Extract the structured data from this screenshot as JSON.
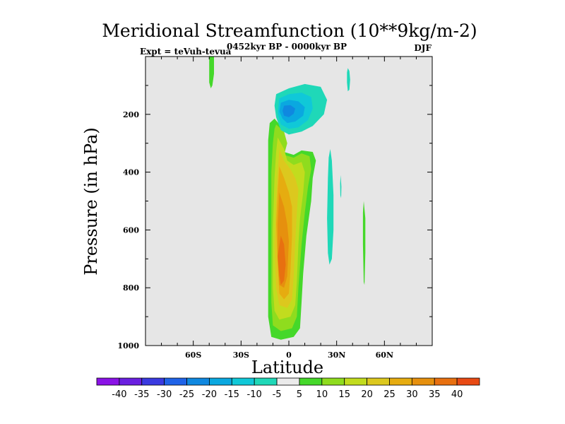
{
  "chart_data": {
    "type": "contour",
    "title": "Meridional Streamfunction (10**9kg/m-2)",
    "left_string": "Expt = teVuh-tevua",
    "center_string": "0452kyr BP - 0000kyr BP",
    "right_string": "DJF",
    "xlabel": "Latitude",
    "ylabel": "Pressure (in hPa)",
    "xlim": [
      -90,
      90
    ],
    "ylim": [
      1000,
      0
    ],
    "grid": false,
    "x_ticks": [
      {
        "value": -60,
        "label": "60S"
      },
      {
        "value": -30,
        "label": "30S"
      },
      {
        "value": 0,
        "label": "0"
      },
      {
        "value": 30,
        "label": "30N"
      },
      {
        "value": 60,
        "label": "60N"
      }
    ],
    "y_ticks": [
      {
        "value": 200,
        "label": "200"
      },
      {
        "value": 400,
        "label": "400"
      },
      {
        "value": 600,
        "label": "600"
      },
      {
        "value": 800,
        "label": "800"
      },
      {
        "value": 1000,
        "label": "1000"
      }
    ],
    "background_color": "#e6e6e6",
    "colorbar": {
      "levels": [
        -40,
        -35,
        -30,
        -25,
        -20,
        -15,
        -10,
        -5,
        5,
        10,
        15,
        20,
        25,
        30,
        35,
        40
      ],
      "colors": [
        "#8a12e6",
        "#6a1fe0",
        "#3a3ae0",
        "#1f63e8",
        "#0f88e0",
        "#0aa8e0",
        "#10c8d8",
        "#1fd8b8",
        "#ebebeb",
        "#45d82a",
        "#8fdc1e",
        "#c2dc1e",
        "#dcc81e",
        "#e6ac10",
        "#e6900e",
        "#e87010",
        "#e84a14"
      ]
    },
    "regions": [
      {
        "name": "max-positive-cell-level-5",
        "fill_index": 9,
        "points": [
          [
            -9,
            215
          ],
          [
            -5,
            240
          ],
          [
            -2,
            310
          ],
          [
            -3,
            330
          ],
          [
            3,
            340
          ],
          [
            8,
            325
          ],
          [
            15,
            330
          ],
          [
            17,
            360
          ],
          [
            15,
            420
          ],
          [
            14,
            500
          ],
          [
            11,
            620
          ],
          [
            9,
            750
          ],
          [
            8,
            850
          ],
          [
            7,
            940
          ],
          [
            3,
            970
          ],
          [
            -5,
            980
          ],
          [
            -11,
            970
          ],
          [
            -13,
            900
          ],
          [
            -13,
            700
          ],
          [
            -13,
            450
          ],
          [
            -13,
            290
          ],
          [
            -12,
            230
          ]
        ]
      },
      {
        "name": "max-positive-cell-level-10",
        "fill_index": 10,
        "points": [
          [
            -8,
            235
          ],
          [
            -3,
            260
          ],
          [
            -1,
            300
          ],
          [
            -3,
            340
          ],
          [
            3,
            350
          ],
          [
            8,
            335
          ],
          [
            13,
            345
          ],
          [
            14,
            390
          ],
          [
            12,
            450
          ],
          [
            10,
            540
          ],
          [
            8,
            650
          ],
          [
            6,
            800
          ],
          [
            5,
            900
          ],
          [
            2,
            940
          ],
          [
            -5,
            950
          ],
          [
            -10,
            930
          ],
          [
            -11,
            850
          ],
          [
            -11,
            600
          ],
          [
            -11,
            400
          ],
          [
            -10,
            300
          ],
          [
            -9,
            250
          ]
        ]
      },
      {
        "name": "max-positive-cell-level-15",
        "fill_index": 11,
        "points": [
          [
            -7,
            280
          ],
          [
            -3,
            320
          ],
          [
            -1,
            360
          ],
          [
            3,
            375
          ],
          [
            8,
            365
          ],
          [
            10,
            400
          ],
          [
            9,
            470
          ],
          [
            7,
            560
          ],
          [
            6,
            650
          ],
          [
            5,
            780
          ],
          [
            4,
            860
          ],
          [
            1,
            900
          ],
          [
            -6,
            910
          ],
          [
            -9,
            880
          ],
          [
            -10,
            800
          ],
          [
            -10,
            600
          ],
          [
            -9,
            420
          ],
          [
            -8,
            330
          ]
        ]
      },
      {
        "name": "max-positive-cell-level-20",
        "fill_index": 12,
        "points": [
          [
            -6,
            320
          ],
          [
            -3,
            360
          ],
          [
            1,
            390
          ],
          [
            4,
            420
          ],
          [
            6,
            460
          ],
          [
            5,
            540
          ],
          [
            4,
            640
          ],
          [
            3,
            760
          ],
          [
            2,
            840
          ],
          [
            -1,
            870
          ],
          [
            -6,
            860
          ],
          [
            -8,
            800
          ],
          [
            -9,
            650
          ],
          [
            -8,
            500
          ],
          [
            -7,
            400
          ]
        ]
      },
      {
        "name": "max-positive-cell-level-25",
        "fill_index": 13,
        "points": [
          [
            -6,
            380
          ],
          [
            -3,
            420
          ],
          [
            0,
            470
          ],
          [
            2,
            520
          ],
          [
            2,
            620
          ],
          [
            1,
            740
          ],
          [
            0,
            820
          ],
          [
            -3,
            840
          ],
          [
            -6,
            820
          ],
          [
            -7,
            720
          ],
          [
            -8,
            580
          ],
          [
            -7,
            470
          ]
        ]
      },
      {
        "name": "max-positive-cell-level-30",
        "fill_index": 14,
        "points": [
          [
            -6,
            470
          ],
          [
            -3,
            520
          ],
          [
            -1,
            580
          ],
          [
            0,
            640
          ],
          [
            -1,
            760
          ],
          [
            -3,
            800
          ],
          [
            -6,
            790
          ],
          [
            -7,
            700
          ],
          [
            -7,
            580
          ]
        ]
      },
      {
        "name": "max-positive-cell-level-35",
        "fill_index": 15,
        "points": [
          [
            -5,
            620
          ],
          [
            -3,
            650
          ],
          [
            -2,
            720
          ],
          [
            -3,
            775
          ],
          [
            -5,
            790
          ],
          [
            -6,
            760
          ],
          [
            -7,
            690
          ]
        ]
      },
      {
        "name": "upper-negative-cell-level-5",
        "fill_index": 7,
        "points": [
          [
            -8,
            130
          ],
          [
            0,
            110
          ],
          [
            10,
            95
          ],
          [
            20,
            105
          ],
          [
            24,
            150
          ],
          [
            22,
            200
          ],
          [
            15,
            240
          ],
          [
            8,
            260
          ],
          [
            0,
            270
          ],
          [
            -5,
            255
          ],
          [
            -8,
            210
          ],
          [
            -9,
            170
          ]
        ]
      },
      {
        "name": "upper-negative-cell-level-10",
        "fill_index": 6,
        "points": [
          [
            -6,
            145
          ],
          [
            0,
            130
          ],
          [
            8,
            125
          ],
          [
            14,
            140
          ],
          [
            15,
            180
          ],
          [
            12,
            220
          ],
          [
            6,
            245
          ],
          [
            0,
            250
          ],
          [
            -5,
            235
          ],
          [
            -7,
            195
          ]
        ]
      },
      {
        "name": "upper-negative-cell-level-15",
        "fill_index": 5,
        "points": [
          [
            -5,
            160
          ],
          [
            0,
            150
          ],
          [
            6,
            155
          ],
          [
            10,
            175
          ],
          [
            9,
            205
          ],
          [
            4,
            225
          ],
          [
            -1,
            230
          ],
          [
            -4,
            215
          ],
          [
            -6,
            190
          ]
        ]
      },
      {
        "name": "upper-negative-cell-level-20",
        "fill_index": 4,
        "points": [
          [
            -3,
            170
          ],
          [
            1,
            168
          ],
          [
            4,
            180
          ],
          [
            3,
            198
          ],
          [
            0,
            210
          ],
          [
            -3,
            205
          ],
          [
            -4,
            188
          ]
        ]
      },
      {
        "name": "positive-streak-near-45s",
        "fill_index": 9,
        "points": [
          [
            -50,
            0
          ],
          [
            -47,
            0
          ],
          [
            -47,
            60
          ],
          [
            -48,
            100
          ],
          [
            -49,
            110
          ],
          [
            -50,
            90
          ]
        ]
      },
      {
        "name": "positive-streak-near-48n",
        "fill_index": 9,
        "points": [
          [
            47,
            500
          ],
          [
            48,
            560
          ],
          [
            48,
            680
          ],
          [
            47.5,
            790
          ],
          [
            47,
            780
          ],
          [
            46.5,
            650
          ],
          [
            46.5,
            540
          ]
        ]
      },
      {
        "name": "negative-streak-near-25n",
        "fill_index": 7,
        "points": [
          [
            26,
            320
          ],
          [
            27,
            360
          ],
          [
            28,
            480
          ],
          [
            28,
            600
          ],
          [
            27,
            700
          ],
          [
            25.5,
            720
          ],
          [
            24.5,
            680
          ],
          [
            24,
            560
          ],
          [
            24.5,
            420
          ],
          [
            25,
            350
          ]
        ]
      },
      {
        "name": "negative-streak-near-32n",
        "fill_index": 7,
        "points": [
          [
            32.5,
            410
          ],
          [
            33,
            450
          ],
          [
            32.8,
            490
          ],
          [
            32.3,
            480
          ],
          [
            32.2,
            440
          ]
        ]
      },
      {
        "name": "negative-streak-near-38n",
        "fill_index": 7,
        "points": [
          [
            37,
            40
          ],
          [
            38,
            50
          ],
          [
            38.5,
            80
          ],
          [
            38,
            115
          ],
          [
            37,
            120
          ],
          [
            36.5,
            90
          ],
          [
            36.5,
            55
          ]
        ]
      }
    ]
  }
}
